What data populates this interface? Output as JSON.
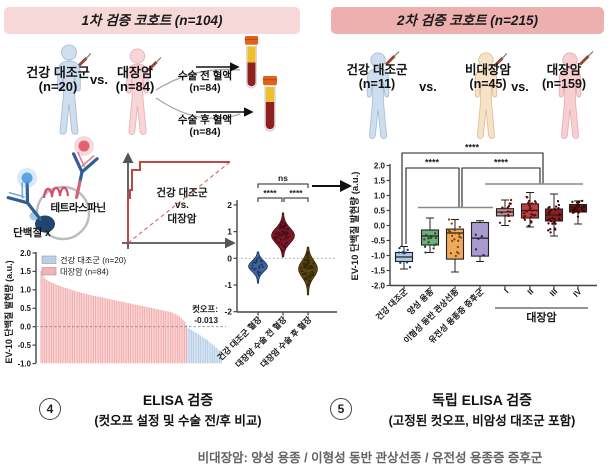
{
  "panel1": {
    "header": "1차 검증 코호트 (n=104)",
    "cohort": {
      "group1": {
        "label": "건강 대조군",
        "n": "(n=20)"
      },
      "vs": "vs.",
      "group2": {
        "label": "대장암",
        "n": "(n=84)"
      },
      "preop": {
        "label": "수술 전 혈액",
        "n": "(n=84)"
      },
      "postop": {
        "label": "수술 후 혈액",
        "n": "(n=84)"
      }
    },
    "assay": {
      "tetraspanin": "테트라스파닌",
      "protein_x": "단백질 x"
    },
    "roc": {
      "line1": "건강 대조군",
      "line2": "vs.",
      "line3": "대장암"
    },
    "caption": {
      "num": "4",
      "title": "ELISA 검증",
      "subtitle": "(컷오프 설정 및 수술 전/후 비교)"
    }
  },
  "panel2": {
    "header": "2차 검증 코호트 (n=215)",
    "cohort": {
      "group1": {
        "label": "건강 대조군",
        "n": "(n=11)"
      },
      "vs1": "vs.",
      "group2": {
        "label": "비대장암",
        "n": "(n=45)"
      },
      "vs2": "vs.",
      "group3": {
        "label": "대장암",
        "n": "(n=159)"
      }
    },
    "caption": {
      "num": "5",
      "title": "독립 ELISA 검증",
      "subtitle": "(고정된 컷오프, 비암성 대조군 포함)"
    }
  },
  "footnote": "비대장암: 양성 용종 / 이형성 동반 관상선종 / 유전성 용종증 증후군",
  "colors": {
    "header1_bg": "#f6d8d8",
    "header2_bg": "#eeafaf",
    "crc_bar": "#f4b3b3",
    "healthy_bar": "#b9d0e8",
    "roc_red": "#bf4a42"
  },
  "chart_data": [
    {
      "id": "waterfall",
      "type": "bar",
      "ylabel": "EV-10 단백질 발현량 (a.u.)",
      "ylim": [
        -1,
        2
      ],
      "yticks": [
        2.0,
        1.5,
        1.0,
        0.5,
        0.0,
        -0.5,
        -1.0
      ],
      "legend": [
        {
          "label": "건강 대조군 (n=20)",
          "color": "#b9d0e8"
        },
        {
          "label": "대장암 (n=84)",
          "color": "#f4b3b3"
        }
      ],
      "cutoff_label": "컷오프:",
      "cutoff_value": "-0.013",
      "cutoff": -0.013,
      "baseline": -1,
      "series": [
        {
          "name": "대장암 (n=84)",
          "color": "#f4b3b3",
          "values": [
            1.52,
            1.4,
            1.33,
            1.28,
            1.25,
            1.22,
            1.2,
            1.18,
            1.16,
            1.14,
            1.12,
            1.1,
            1.08,
            1.07,
            1.05,
            1.04,
            1.02,
            1.01,
            0.99,
            0.98,
            0.96,
            0.95,
            0.94,
            0.92,
            0.91,
            0.9,
            0.89,
            0.87,
            0.86,
            0.85,
            0.84,
            0.83,
            0.82,
            0.81,
            0.8,
            0.79,
            0.78,
            0.77,
            0.76,
            0.75,
            0.74,
            0.73,
            0.72,
            0.71,
            0.7,
            0.69,
            0.68,
            0.67,
            0.66,
            0.65,
            0.64,
            0.63,
            0.62,
            0.61,
            0.6,
            0.59,
            0.58,
            0.57,
            0.56,
            0.55,
            0.54,
            0.53,
            0.52,
            0.51,
            0.5,
            0.49,
            0.48,
            0.47,
            0.46,
            0.45,
            0.44,
            0.43,
            0.42,
            0.41,
            0.4,
            0.38,
            0.36,
            0.34,
            0.31,
            0.28,
            0.24,
            0.19,
            0.13,
            0.05
          ]
        },
        {
          "name": "건강 대조군 (n=20)",
          "color": "#b9d0e8",
          "values": [
            -0.04,
            -0.06,
            -0.09,
            -0.12,
            -0.15,
            -0.18,
            -0.21,
            -0.24,
            -0.27,
            -0.3,
            -0.33,
            -0.36,
            -0.4,
            -0.44,
            -0.48,
            -0.52,
            -0.56,
            -0.61,
            -0.66,
            -0.72
          ]
        }
      ]
    },
    {
      "id": "violin",
      "type": "violin",
      "ylim": [
        -2,
        2
      ],
      "yticks": [
        2,
        1,
        0,
        -1,
        -2
      ],
      "zero_line": true,
      "groups": [
        {
          "label": "건강 대조군 혈장",
          "color": "#41639a",
          "dot_color": "#1d3a66",
          "min": -0.93,
          "max": 0.24,
          "peak": -0.3,
          "halfwidth": 9,
          "dots": 22
        },
        {
          "label": "대장암 수술 전 혈장",
          "color": "#7c1828",
          "dot_color": "#4b0d18",
          "min": 0.05,
          "max": 1.7,
          "peak": 0.85,
          "halfwidth": 11,
          "dots": 60
        },
        {
          "label": "대장암 수술 후 혈장",
          "color": "#5a4512",
          "dot_color": "#352808",
          "min": -1.37,
          "max": 0.42,
          "peak": -0.4,
          "halfwidth": 9,
          "dots": 60
        }
      ],
      "significance": [
        {
          "label": "****",
          "from": 0,
          "to": 1
        },
        {
          "label": "****",
          "from": 1,
          "to": 2
        },
        {
          "label": "ns",
          "from": 0,
          "to": 2
        }
      ]
    },
    {
      "id": "box",
      "type": "box",
      "ylabel": "EV-10 단백질 발현량 (a.u.)",
      "ylim": [
        -2,
        2
      ],
      "yticks": [
        2.0,
        1.5,
        1.0,
        0.5,
        0.0,
        -0.5,
        -1.0,
        -1.5,
        -2.0
      ],
      "categories": [
        "건강 대조군",
        "양성 용종",
        "이형성 동반 관상선종",
        "유전성 용종증 증후군",
        "I",
        "II",
        "III",
        "IV"
      ],
      "group_label": {
        "text": "대장암",
        "span": [
          4,
          7
        ]
      },
      "boxes": [
        {
          "color": "#aecbe8",
          "dot_color": "#1d3a63",
          "lo": -1.45,
          "q1": -1.2,
          "med": -1.05,
          "q3": -0.9,
          "hi": -0.7,
          "dots": 10
        },
        {
          "color": "#74aa7c",
          "dot_color": "#1e4a26",
          "lo": -0.9,
          "q1": -0.65,
          "med": -0.35,
          "q3": -0.15,
          "hi": 0.25,
          "dots": 14
        },
        {
          "color": "#f0a95a",
          "dot_color": "#7a4a10",
          "lo": -1.55,
          "q1": -1.12,
          "med": -0.25,
          "q3": -0.12,
          "hi": 0.2,
          "dots": 20
        },
        {
          "color": "#a79bd2",
          "dot_color": "#2a2550",
          "lo": -1.2,
          "q1": -1.02,
          "med": -0.42,
          "q3": 0.1,
          "hi": 0.16,
          "dots": 5
        },
        {
          "color": "#c49090",
          "dot_color": "#5e1212",
          "lo": 0.0,
          "q1": 0.32,
          "med": 0.45,
          "q3": 0.56,
          "hi": 0.85,
          "dots": 16
        },
        {
          "color": "#bc4040",
          "dot_color": "#5e0f0f",
          "lo": -0.05,
          "q1": 0.25,
          "med": 0.5,
          "q3": 0.72,
          "hi": 1.1,
          "dots": 32
        },
        {
          "color": "#8e1f1f",
          "dot_color": "#420909",
          "lo": -0.35,
          "q1": 0.15,
          "med": 0.35,
          "q3": 0.55,
          "hi": 1.05,
          "dots": 32
        },
        {
          "color": "#6e1414",
          "dot_color": "#360606",
          "lo": 0.05,
          "q1": 0.45,
          "med": 0.6,
          "q3": 0.7,
          "hi": 0.82,
          "dots": 22
        }
      ],
      "significance": [
        {
          "label": "****",
          "pos": "top"
        },
        {
          "label": "****",
          "pos": "left"
        },
        {
          "label": "****",
          "pos": "right"
        }
      ]
    }
  ]
}
